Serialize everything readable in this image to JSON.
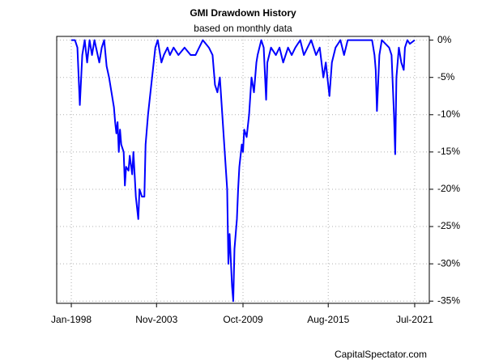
{
  "chart_data": {
    "type": "line",
    "title": "GMI Drawdown History",
    "subtitle": "based on monthly data",
    "credit": "CapitalSpectator.com",
    "color": "#0000ff",
    "grid": true,
    "ylim": [
      -35.3,
      0.5
    ],
    "xlim": [
      "Jan-1997",
      "Jul-2022"
    ],
    "yticks": [
      {
        "value": 0,
        "label": "0%"
      },
      {
        "value": -5,
        "label": "-5%"
      },
      {
        "value": -10,
        "label": "-10%"
      },
      {
        "value": -15,
        "label": "-15%"
      },
      {
        "value": -20,
        "label": "-20%"
      },
      {
        "value": -25,
        "label": "-25%"
      },
      {
        "value": -30,
        "label": "-30%"
      },
      {
        "value": -35,
        "label": "-35%"
      }
    ],
    "xticks": [
      "Jan-1998",
      "Nov-2003",
      "Oct-2009",
      "Aug-2015",
      "Jul-2021"
    ],
    "x": [
      "Jan-1998",
      "Apr-1998",
      "Jun-1998",
      "Aug-1998",
      "Oct-1998",
      "Dec-1998",
      "Feb-1999",
      "Apr-1999",
      "Jun-1999",
      "Aug-1999",
      "Dec-1999",
      "Feb-2000",
      "Apr-2000",
      "Jun-2000",
      "Aug-2000",
      "Oct-2000",
      "Dec-2000",
      "Jan-2001",
      "Feb-2001",
      "Mar-2001",
      "Apr-2001",
      "May-2001",
      "Jun-2001",
      "Aug-2001",
      "Sep-2001",
      "Oct-2001",
      "Dec-2001",
      "Jan-2002",
      "Mar-2002",
      "Apr-2002",
      "Jun-2002",
      "Aug-2002",
      "Sep-2002",
      "Nov-2002",
      "Jan-2003",
      "Feb-2003",
      "Apr-2003",
      "Jun-2003",
      "Aug-2003",
      "Oct-2003",
      "Dec-2003",
      "Mar-2004",
      "May-2004",
      "Aug-2004",
      "Oct-2004",
      "Jan-2005",
      "May-2005",
      "Oct-2005",
      "Mar-2006",
      "Jul-2006",
      "Jan-2007",
      "Jun-2007",
      "Sep-2007",
      "Nov-2007",
      "Jan-2008",
      "Mar-2008",
      "May-2008",
      "Jul-2008",
      "Sep-2008",
      "Oct-2008",
      "Nov-2008",
      "Jan-2009",
      "Feb-2009",
      "Mar-2009",
      "May-2009",
      "Jun-2009",
      "Jul-2009",
      "Sep-2009",
      "Oct-2009",
      "Nov-2009",
      "Jan-2010",
      "Mar-2010",
      "May-2010",
      "Jul-2010",
      "Sep-2010",
      "Oct-2010",
      "Jan-2011",
      "Mar-2011",
      "May-2011",
      "Jun-2011",
      "Sep-2011",
      "Jan-2012",
      "Apr-2012",
      "Jul-2012",
      "Nov-2012",
      "Feb-2013",
      "May-2013",
      "Sep-2013",
      "Dec-2013",
      "Mar-2014",
      "Jun-2014",
      "Oct-2014",
      "Jan-2015",
      "Apr-2015",
      "Jun-2015",
      "Sep-2015",
      "Nov-2015",
      "Feb-2016",
      "Jun-2016",
      "Sep-2016",
      "Dec-2016",
      "Aug-2018",
      "Oct-2018",
      "Nov-2018",
      "Dec-2018",
      "Feb-2019",
      "Apr-2019",
      "Oct-2019",
      "Dec-2019",
      "Feb-2020",
      "Mar-2020",
      "Apr-2020",
      "Jun-2020",
      "Aug-2020",
      "Oct-2020",
      "Nov-2020",
      "Jan-2021",
      "Mar-2021",
      "Jul-2021"
    ],
    "values": [
      0,
      0,
      -1,
      -8.7,
      -2,
      0,
      -3,
      0,
      -2,
      0,
      -3,
      -1,
      0,
      -3.5,
      -5,
      -7,
      -9,
      -11,
      -12.5,
      -11,
      -15,
      -12,
      -14,
      -15,
      -19.5,
      -17,
      -17.5,
      -15.5,
      -18,
      -15,
      -21,
      -24,
      -20,
      -21,
      -21,
      -14,
      -10,
      -7,
      -4,
      -1,
      0,
      -3,
      -2,
      -1,
      -2,
      -1,
      -2,
      -1,
      -2,
      -2,
      0,
      -1,
      -2,
      -6,
      -7,
      -5,
      -10,
      -15,
      -20,
      -30,
      -26,
      -33,
      -35,
      -28,
      -24,
      -20,
      -17,
      -14,
      -15,
      -12,
      -13,
      -10,
      -5,
      -7,
      -3,
      -2,
      0,
      -1,
      -8,
      -3,
      -1,
      -2,
      -1,
      -3,
      -1,
      -2,
      -1,
      0,
      -2,
      -1,
      0,
      -2,
      -1,
      -5,
      -3,
      -7.5,
      -3,
      -1,
      0,
      -2,
      0,
      0,
      -2,
      -4,
      -9.5,
      -2,
      0,
      -1,
      -2,
      -10,
      -15.3,
      -5,
      -1,
      -3,
      -4,
      -1,
      0,
      -0.5,
      0
    ]
  }
}
